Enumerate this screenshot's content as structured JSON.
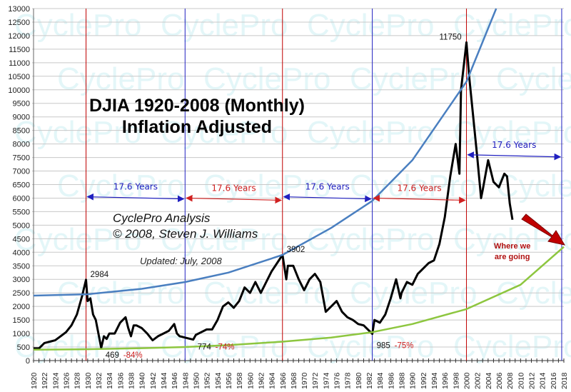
{
  "chart_data": {
    "type": "line",
    "title": "DJIA 1920-2008 (Monthly)",
    "subtitle": "Inflation Adjusted",
    "credit": [
      "CyclePro Analysis",
      "© 2008, Steven J. Williams"
    ],
    "updated": "Updated: July, 2008",
    "watermark": "CyclePro",
    "xlim": [
      1920,
      2018
    ],
    "ylim": [
      0,
      13000
    ],
    "grid": true,
    "yticks": [
      0,
      500,
      1000,
      1500,
      2000,
      2500,
      3000,
      3500,
      4000,
      4500,
      5000,
      5500,
      6000,
      6500,
      7000,
      7500,
      8000,
      8500,
      9000,
      9500,
      10000,
      10500,
      11000,
      11500,
      12000,
      12500,
      13000
    ],
    "xtick_step": 2,
    "series": [
      {
        "color": "#000000",
        "x": [
          1920,
          1921,
          1922,
          1923,
          1924,
          1925,
          1926,
          1927,
          1928,
          1929,
          1929.7,
          1930,
          1930.5,
          1931,
          1931.5,
          1932.5,
          1933,
          1933.5,
          1934,
          1935,
          1936,
          1937,
          1937.5,
          1938,
          1938.5,
          1939,
          1940,
          1941,
          1942,
          1943,
          1944,
          1945,
          1946,
          1946.5,
          1947,
          1948,
          1949,
          1949.5,
          1950,
          1951,
          1952,
          1953,
          1954,
          1955,
          1956,
          1957,
          1958,
          1959,
          1960,
          1961,
          1962,
          1963,
          1964,
          1965,
          1966,
          1966.7,
          1967,
          1968,
          1969,
          1970,
          1971,
          1972,
          1973,
          1974,
          1975,
          1976,
          1977,
          1978,
          1979,
          1980,
          1981,
          1982.6,
          1983,
          1984,
          1985,
          1986,
          1987,
          1987.8,
          1988,
          1989,
          1990,
          1991,
          1992,
          1993,
          1994,
          1995,
          1996,
          1997,
          1998,
          1998.7,
          1999,
          2000,
          2000.5,
          2001,
          2002,
          2002.7,
          2003,
          2004,
          2005,
          2006,
          2007,
          2007.5,
          2008,
          2008.5
        ],
        "y": [
          450,
          450,
          650,
          700,
          750,
          900,
          1050,
          1300,
          1700,
          2400,
          2984,
          2200,
          2300,
          1700,
          1500,
          469,
          900,
          800,
          1000,
          1000,
          1400,
          1600,
          1200,
          900,
          1300,
          1300,
          1200,
          1000,
          750,
          900,
          1000,
          1100,
          1350,
          1000,
          900,
          850,
          800,
          774,
          950,
          1050,
          1150,
          1150,
          1500,
          2000,
          2150,
          1950,
          2200,
          2700,
          2500,
          2900,
          2500,
          2900,
          3300,
          3600,
          3902,
          3000,
          3500,
          3500,
          3000,
          2600,
          3000,
          3200,
          2900,
          1800,
          2000,
          2200,
          1800,
          1600,
          1500,
          1350,
          1300,
          985,
          1500,
          1400,
          1700,
          2300,
          3000,
          2300,
          2500,
          2900,
          2800,
          3200,
          3400,
          3600,
          3700,
          4300,
          5300,
          6800,
          8000,
          6900,
          10000,
          11750,
          10500,
          9500,
          7500,
          6000,
          6300,
          7400,
          6600,
          6400,
          6900,
          6800,
          5800,
          5200
        ]
      },
      {
        "color": "#4a7fc0",
        "x": [
          1920,
          1930,
          1940,
          1948,
          1956,
          1966,
          1975,
          1982.6,
          1990,
          2000,
          2005.5
        ],
        "y": [
          2400,
          2450,
          2650,
          2900,
          3250,
          3902,
          4900,
          5900,
          7400,
          10300,
          13000
        ]
      },
      {
        "color": "#8dc63f",
        "x": [
          1920,
          1930,
          1940,
          1948,
          1956,
          1966,
          1975,
          1982.6,
          1990,
          2000,
          2010,
          2018
        ],
        "y": [
          400,
          420,
          460,
          500,
          570,
          700,
          850,
          1050,
          1350,
          1900,
          2800,
          4200
        ]
      }
    ],
    "cycle_lines": [
      {
        "x": 1929.7,
        "color": "#c00000"
      },
      {
        "x": 1948,
        "color": "#2020c0"
      },
      {
        "x": 1966,
        "color": "#c00000"
      },
      {
        "x": 1982.6,
        "color": "#2020c0"
      },
      {
        "x": 2000,
        "color": "#c00000"
      },
      {
        "x": 2017.6,
        "color": "#2020c0"
      }
    ],
    "spans": [
      {
        "from": 1929.7,
        "to": 1948,
        "y": 6050,
        "label": "17.6 Years",
        "color": "#2020c0"
      },
      {
        "from": 1948,
        "to": 1966,
        "y": 6000,
        "label": "17.6 Years",
        "color": "#d02020"
      },
      {
        "from": 1966,
        "to": 1982.6,
        "y": 6050,
        "label": "17.6 Years",
        "color": "#2020c0"
      },
      {
        "from": 1982.6,
        "to": 2000,
        "y": 6000,
        "label": "17.6 Years",
        "color": "#d02020"
      },
      {
        "from": 2000,
        "to": 2017.6,
        "y": 7600,
        "label": "17.6 Years",
        "color": "#2020c0"
      }
    ],
    "annotations": [
      {
        "x": 1929.7,
        "y": 2984,
        "text": "2984",
        "pct": ""
      },
      {
        "x": 1932.5,
        "y": 469,
        "text": "469",
        "pct": "-84%"
      },
      {
        "x": 1949.5,
        "y": 774,
        "text": "774",
        "pct": "-74%"
      },
      {
        "x": 1966,
        "y": 3902,
        "text": "3902",
        "pct": ""
      },
      {
        "x": 1982.6,
        "y": 985,
        "text": "985",
        "pct": "-75%"
      },
      {
        "x": 2000,
        "y": 11750,
        "text": "11750",
        "pct": ""
      }
    ],
    "forecast_label": [
      "Where we",
      "are going"
    ],
    "forecast_arrow_color": "#c00000"
  }
}
